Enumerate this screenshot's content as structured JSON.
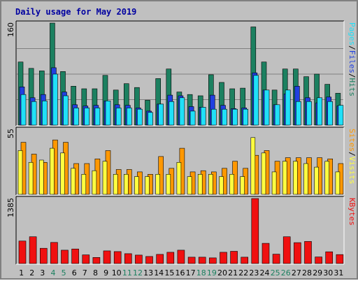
{
  "chart_data": {
    "type": "bar",
    "title": "Daily usage for May 2019",
    "categories": [
      "1",
      "2",
      "3",
      "4",
      "5",
      "6",
      "7",
      "8",
      "9",
      "10",
      "11",
      "12",
      "13",
      "14",
      "15",
      "16",
      "17",
      "18",
      "19",
      "20",
      "21",
      "22",
      "23",
      "24",
      "25",
      "26",
      "27",
      "28",
      "29",
      "30",
      "31"
    ],
    "weekend_days": [
      "4",
      "5",
      "11",
      "12",
      "18",
      "19",
      "25",
      "26"
    ],
    "colors": {
      "hits": "#1c8060",
      "files": "#2040e0",
      "pages": "#20e0f8",
      "visits": "#ff9800",
      "sites": "#ffff40",
      "kbytes": "#f01010",
      "weekday_label": "#000000",
      "weekend_label": "#1c8060",
      "background": "#c0c0c0"
    },
    "panels": [
      {
        "id": "traffic",
        "ymax_label": "160",
        "ylim": [
          0,
          160
        ],
        "legend": [
          "Pages",
          "/",
          "Files",
          "/",
          "Hits"
        ],
        "legend_colors": [
          "#20e0f8",
          "#000000",
          "#2040e0",
          "#000000",
          "#1c8060"
        ],
        "series": [
          {
            "name": "Hits",
            "color": "#1c8060",
            "values": [
              99,
              89,
              85,
              160,
              84,
              61,
              57,
              57,
              78,
              55,
              65,
              59,
              39,
              73,
              88,
              52,
              48,
              46,
              79,
              67,
              57,
              58,
              154,
              99,
              55,
              88,
              88,
              76,
              80,
              64,
              50
            ]
          },
          {
            "name": "Files",
            "color": "#2040e0",
            "values": [
              60,
              43,
              48,
              90,
              52,
              32,
              30,
              31,
              38,
              32,
              31,
              27,
              22,
              33,
              47,
              46,
              29,
              28,
              47,
              31,
              26,
              27,
              82,
              55,
              32,
              49,
              61,
              43,
              35,
              44,
              30
            ]
          },
          {
            "name": "Pages",
            "color": "#20e0f8",
            "values": [
              48,
              37,
              38,
              80,
              46,
              27,
              27,
              27,
              38,
              27,
              27,
              25,
              20,
              33,
              37,
              43,
              22,
              28,
              25,
              25,
              25,
              25,
              78,
              55,
              32,
              55,
              37,
              37,
              43,
              37,
              31
            ]
          }
        ]
      },
      {
        "id": "visitors",
        "ymax_label": "55",
        "ylim": [
          0,
          55
        ],
        "legend": [
          "Sites",
          "/",
          "Visits"
        ],
        "legend_colors": [
          "#ff9800",
          "#000000",
          "#ffff40"
        ],
        "series": [
          {
            "name": "Visits",
            "color": "#ff9800",
            "values": [
              44,
              34,
              27,
              46,
              44,
              26,
              26,
              30,
              37,
              21,
              21,
              19,
              17,
              32,
              22,
              39,
              19,
              20,
              19,
              22,
              28,
              22,
              33,
              37,
              28,
              31,
              31,
              31,
              31,
              30,
              26
            ]
          },
          {
            "name": "Sites",
            "color": "#ffff40",
            "values": [
              37,
              27,
              29,
              39,
              35,
              22,
              17,
              20,
              28,
              17,
              17,
              15,
              15,
              17,
              17,
              27,
              15,
              17,
              17,
              15,
              17,
              15,
              48,
              35,
              19,
              28,
              28,
              26,
              23,
              28,
              19
            ]
          }
        ]
      },
      {
        "id": "bytes",
        "ymax_label": "1385",
        "ylim": [
          0,
          1385
        ],
        "legend": [
          "KBytes"
        ],
        "legend_colors": [
          "#f01010"
        ],
        "series": [
          {
            "name": "KBytes",
            "color": "#f01010",
            "values": [
              480,
              570,
              325,
              450,
              285,
              310,
              185,
              130,
              270,
              255,
              210,
              180,
              150,
              195,
              240,
              285,
              135,
              135,
              120,
              240,
              260,
              135,
              1385,
              430,
              200,
              570,
              445,
              470,
              140,
              250,
              190
            ]
          }
        ]
      }
    ]
  }
}
